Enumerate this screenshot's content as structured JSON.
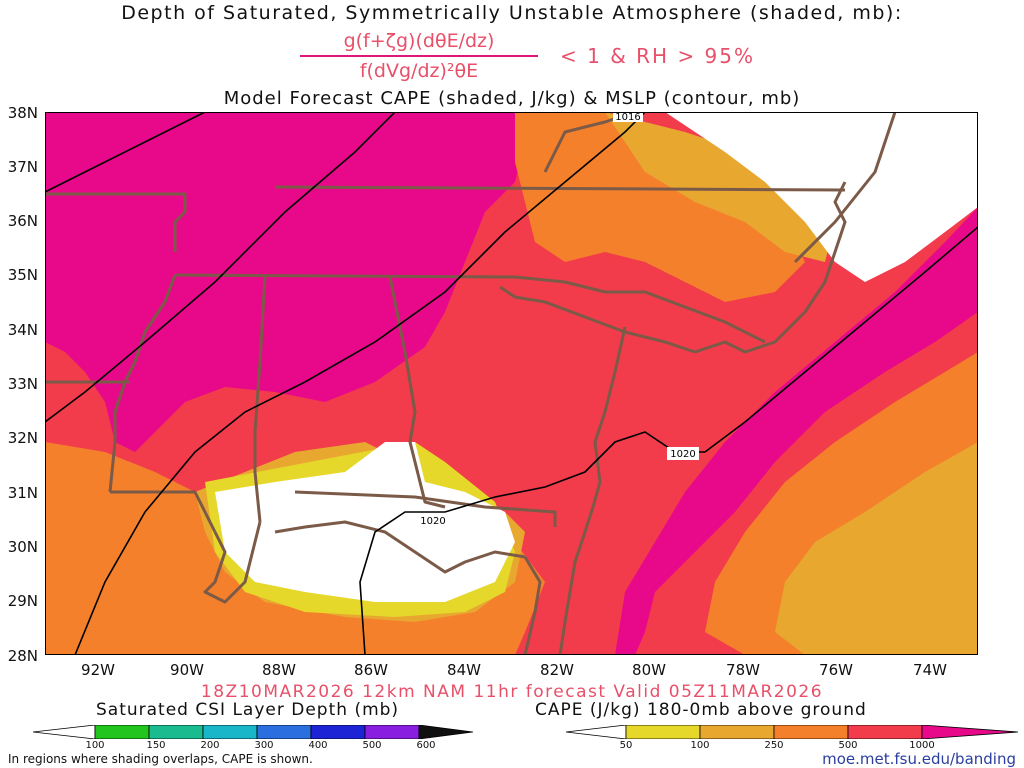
{
  "header": {
    "title": "Depth of Saturated, Symmetrically Unstable Atmosphere (shaded, mb):",
    "formula_numerator": "g(f+ζg)(dθE/dz)",
    "formula_denominator": "f(dVg/dz)²θE",
    "condition": "< 1 & RH > 95%",
    "subtitle": "Model Forecast CAPE (shaded, J/kg) & MSLP (contour, mb)"
  },
  "map": {
    "lat_labels": [
      "38N",
      "37N",
      "36N",
      "35N",
      "34N",
      "33N",
      "32N",
      "31N",
      "30N",
      "29N",
      "28N"
    ],
    "lon_labels": [
      "92W",
      "90W",
      "88W",
      "86W",
      "84W",
      "82W",
      "80W",
      "78W",
      "76W",
      "74W"
    ],
    "contour_labels": [
      "1016",
      "1020",
      "1020"
    ],
    "colors": {
      "cape_1000_plus": "#e8098a",
      "cape_500_1000": "#f23c4b",
      "cape_250_500": "#f4802c",
      "cape_100_250": "#e8a830",
      "cape_50_100": "#e6d82a",
      "state_lines": "#7b5a48",
      "contours": "#000000"
    }
  },
  "footer": {
    "run_info": "18Z10MAR2026 12km NAM 11hr forecast Valid 05Z11MAR2026",
    "csi_title": "Saturated CSI Layer Depth (mb)",
    "csi_ticks": [
      "100",
      "150",
      "200",
      "300",
      "400",
      "500",
      "600"
    ],
    "csi_colors": [
      "#ffffff",
      "#22c41e",
      "#1abb8e",
      "#18b6c8",
      "#2a6ee0",
      "#1c24d6",
      "#8a1ee0",
      "#101010"
    ],
    "cape_title": "CAPE (J/kg) 180-0mb above ground",
    "cape_ticks": [
      "50",
      "100",
      "250",
      "500",
      "1000"
    ],
    "cape_colors": [
      "#ffffff",
      "#e6d82a",
      "#e8a830",
      "#f4802c",
      "#f23c4b",
      "#e8098a"
    ],
    "note": "In regions where shading overlaps, CAPE is shown.",
    "credit": "moe.met.fsu.edu/banding"
  }
}
